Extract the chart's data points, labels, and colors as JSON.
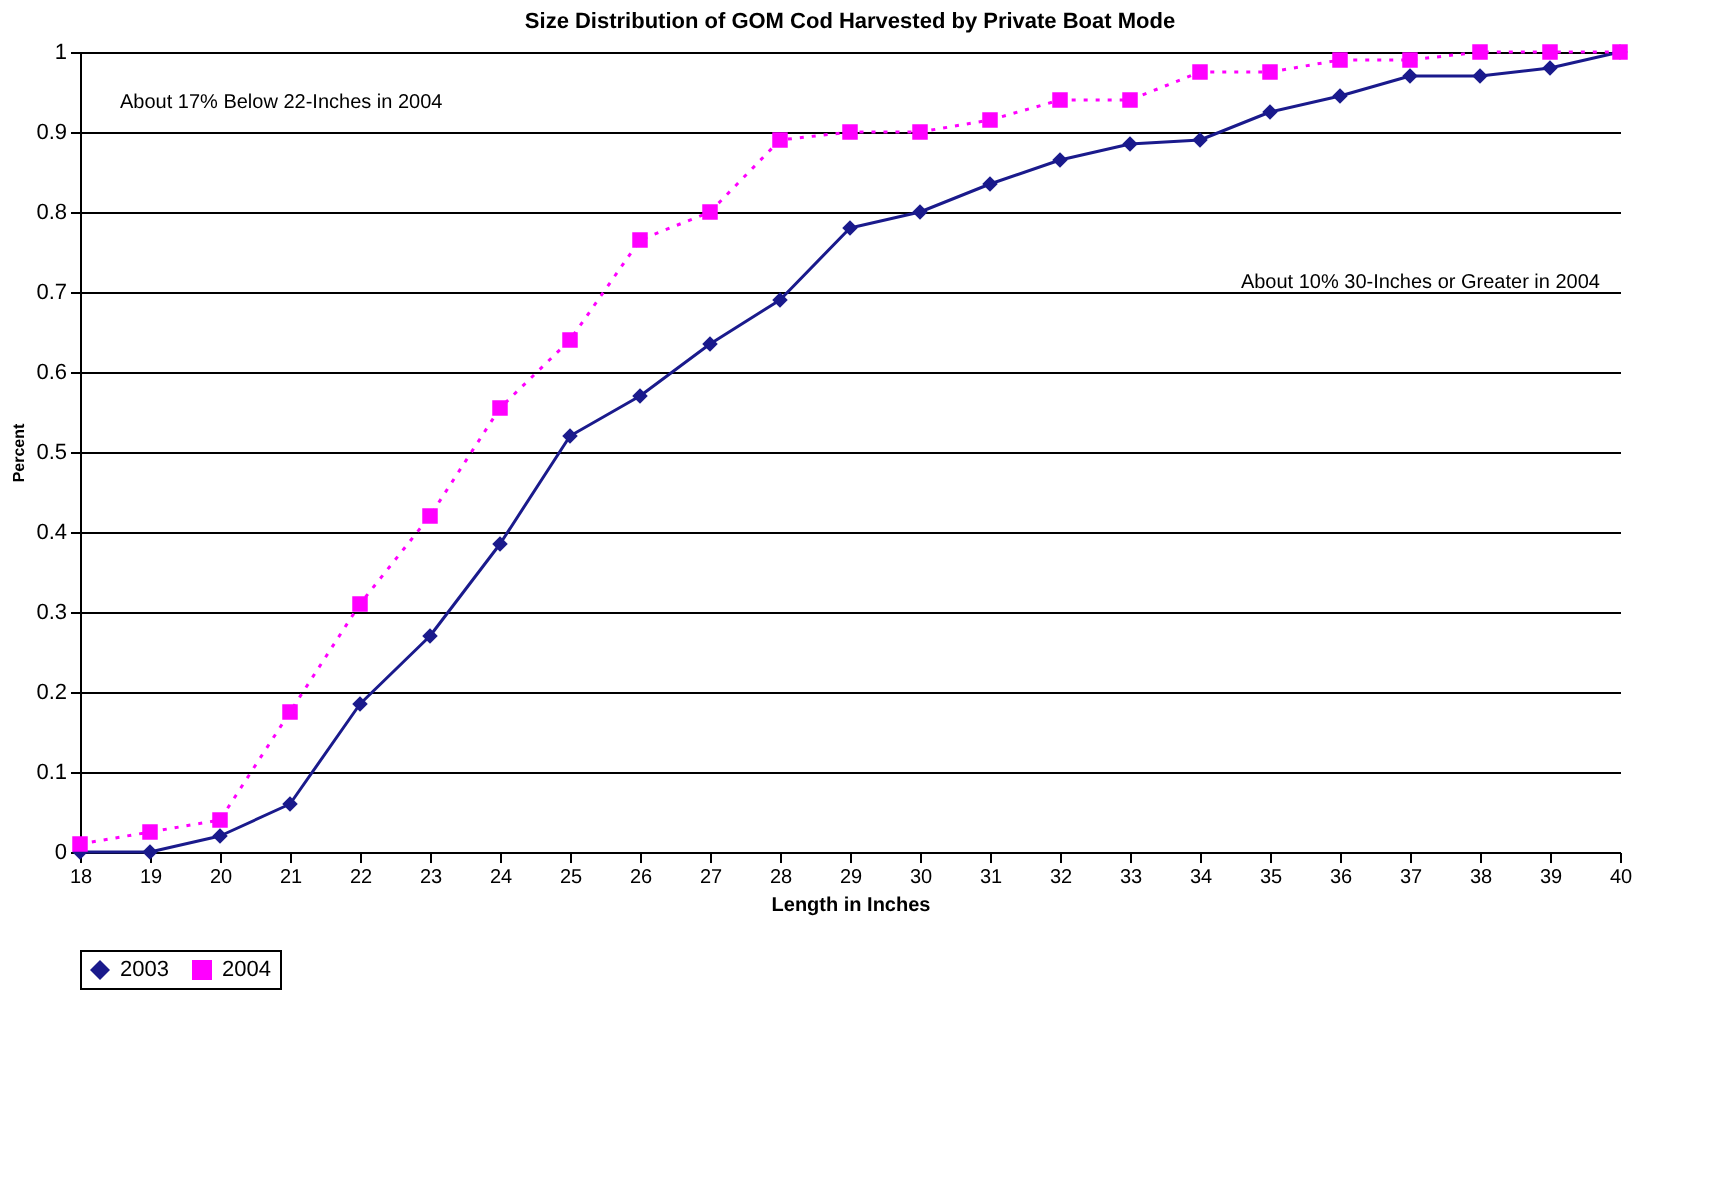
{
  "chart_data": {
    "type": "line",
    "title": "Size Distribution of GOM Cod Harvested by Private Boat Mode",
    "xlabel": "Length in Inches",
    "ylabel": "Percent",
    "categories": [
      "18",
      "19",
      "20",
      "21",
      "22",
      "23",
      "24",
      "25",
      "26",
      "27",
      "28",
      "29",
      "30",
      "31",
      "32",
      "33",
      "34",
      "35",
      "36",
      "37",
      "38",
      "39",
      "40"
    ],
    "series": [
      {
        "name": "2003",
        "color": "#1a1a8c",
        "marker": "diamond",
        "line_style": "solid",
        "values": [
          0,
          0,
          0.02,
          0.06,
          0.185,
          0.27,
          0.385,
          0.52,
          0.57,
          0.635,
          0.69,
          0.78,
          0.8,
          0.835,
          0.865,
          0.885,
          0.89,
          0.925,
          0.945,
          0.97,
          0.97,
          0.98,
          1.0
        ]
      },
      {
        "name": "2004",
        "color": "#ff00ff",
        "marker": "square",
        "line_style": "dotted",
        "values": [
          0.01,
          0.025,
          0.04,
          0.175,
          0.31,
          0.42,
          0.555,
          0.64,
          0.765,
          0.8,
          0.89,
          0.9,
          0.9,
          0.915,
          0.94,
          0.94,
          0.975,
          0.975,
          0.99,
          0.99,
          1.0,
          1.0,
          1.0
        ]
      }
    ],
    "ylim": [
      0,
      1
    ],
    "yticks": [
      0,
      0.1,
      0.2,
      0.3,
      0.4,
      0.5,
      0.6,
      0.7,
      0.8,
      0.9,
      1
    ],
    "grid": "y",
    "legend": "bottom",
    "annotations": [
      "About 17% Below 22-Inches in 2004",
      "About 10% 30-Inches or Greater in 2004"
    ]
  }
}
